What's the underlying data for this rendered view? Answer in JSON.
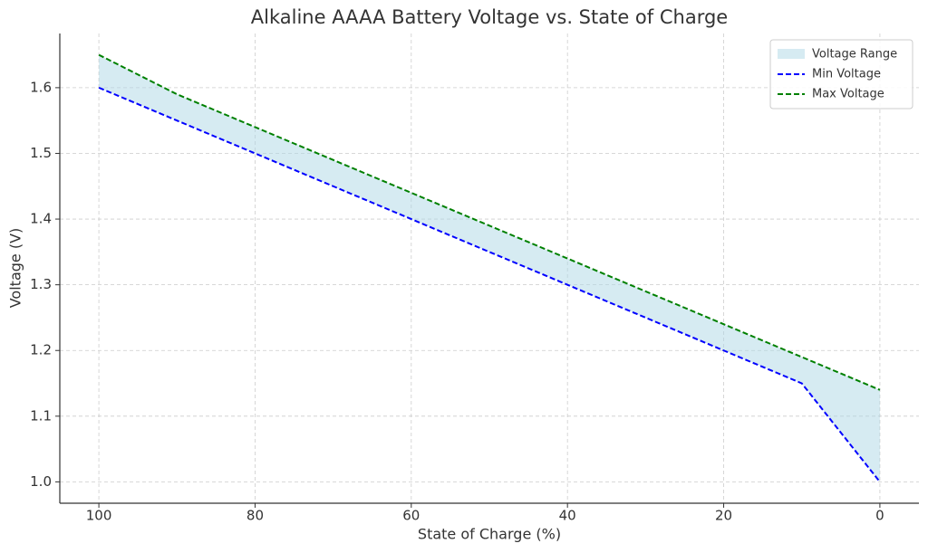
{
  "chart_data": {
    "type": "line",
    "title": "Alkaline AAAA Battery Voltage vs. State of Charge",
    "x_label": "State of Charge (%)",
    "y_label": "Voltage (V)",
    "x": [
      100,
      90,
      80,
      70,
      60,
      50,
      40,
      30,
      20,
      10,
      0
    ],
    "series": [
      {
        "name": "Voltage Range",
        "type": "fill_between",
        "color": "#add8e6"
      },
      {
        "name": "Min Voltage",
        "color": "#0000ff",
        "values": [
          1.6,
          1.55,
          1.5,
          1.45,
          1.4,
          1.35,
          1.3,
          1.25,
          1.2,
          1.15,
          1.0
        ]
      },
      {
        "name": "Max Voltage",
        "color": "#008000",
        "values": [
          1.65,
          1.59,
          1.54,
          1.49,
          1.44,
          1.39,
          1.34,
          1.29,
          1.24,
          1.19,
          1.14
        ]
      }
    ],
    "xlim": [
      105,
      -5
    ],
    "xticks": [
      100,
      80,
      60,
      40,
      20,
      0
    ],
    "ylim": [
      0.9675,
      1.6825
    ],
    "yticks": [
      {
        "value": 1.0,
        "label": "1.0"
      },
      1.1,
      1.2,
      1.3,
      1.4,
      1.5,
      1.6
    ],
    "grid": true,
    "legend": "upper right"
  }
}
